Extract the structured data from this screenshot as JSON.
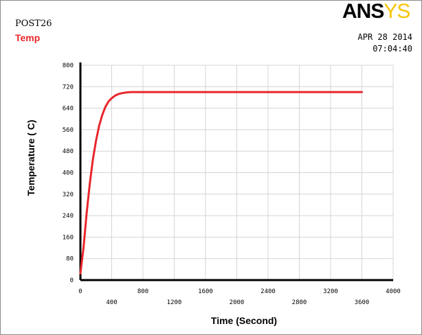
{
  "header": {
    "title": "POST26",
    "series_label": "Temp",
    "logo_part1": "ANS",
    "logo_part2": "YS",
    "date": "APR 28 2014",
    "time": "07:04:40"
  },
  "colors": {
    "series": "#e8262a",
    "logo_yellow": "#f5c400",
    "grid": "#d4d4d4",
    "axis": "#000000"
  },
  "chart_data": {
    "type": "line",
    "xlabel": "Time (Second)",
    "ylabel": "Temperature ( C)",
    "xlim": [
      0,
      4000
    ],
    "ylim": [
      0,
      800
    ],
    "grid": true,
    "x_ticks_row1": [
      "0",
      "800",
      "1600",
      "2400",
      "3200",
      "4000"
    ],
    "x_ticks_row2": [
      "400",
      "1200",
      "2000",
      "2800",
      "3600"
    ],
    "y_ticks": [
      "0",
      "80",
      "160",
      "240",
      "320",
      "400",
      "480",
      "560",
      "640",
      "720",
      "800"
    ],
    "series": [
      {
        "name": "Temp",
        "x": [
          0,
          40,
          80,
          120,
          160,
          200,
          240,
          280,
          320,
          360,
          400,
          450,
          500,
          550,
          600,
          650,
          700,
          800,
          900,
          1000,
          1200,
          1600,
          2000,
          2400,
          2800,
          3200,
          3600
        ],
        "y": [
          25,
          120,
          250,
          360,
          450,
          520,
          575,
          615,
          645,
          665,
          677,
          688,
          694,
          697,
          699,
          700,
          700,
          700,
          700,
          700,
          700,
          700,
          700,
          700,
          700,
          700,
          700
        ]
      }
    ]
  }
}
